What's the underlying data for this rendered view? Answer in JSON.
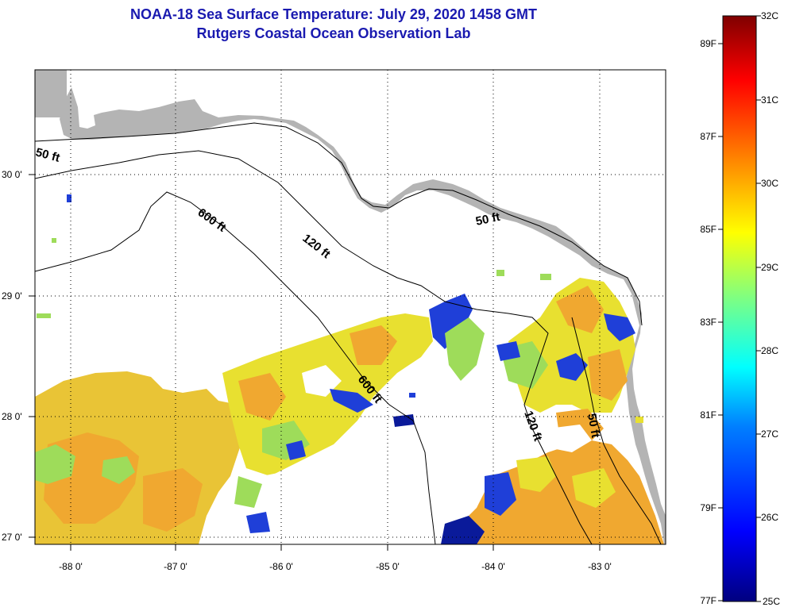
{
  "title": {
    "line1": "NOAA-18 Sea Surface Temperature:  July 29, 2020 1458 GMT",
    "line2": "Rutgers Coastal Ocean Observation Lab"
  },
  "axes": {
    "lon_labels": [
      "-88 0'",
      "-87 0'",
      "-86 0'",
      "-85 0'",
      "-84 0'",
      "-83 0'"
    ],
    "lat_labels": [
      "30 0'",
      "29 0'",
      "28 0'",
      "27 0'"
    ]
  },
  "contours": {
    "c50_west": "50 ft",
    "c600_north": "600 ft",
    "c120_north": "120 ft",
    "c50_east": "50 ft",
    "c600_south": "600 ft",
    "c120_south": "120 ft",
    "c50_south": "50 ft"
  },
  "colorbar": {
    "celsius": [
      "32C",
      "31C",
      "30C",
      "29C",
      "28C",
      "27C",
      "26C",
      "25C"
    ],
    "fahrenheit": [
      "89F",
      "87F",
      "85F",
      "83F",
      "81F",
      "79F",
      "77F"
    ],
    "colors": [
      "#00007f",
      "#0000ff",
      "#0080ff",
      "#00ffff",
      "#80ff80",
      "#ffff00",
      "#ff8000",
      "#ff0000",
      "#7f0000"
    ]
  },
  "palette": {
    "land": "#b4b4b4",
    "cloud": "#ffffff",
    "warm_orange": "#f0a830",
    "yellow": "#e8e030",
    "green": "#9edc5a",
    "blue": "#1f3fd8",
    "dark_blue": "#0a1a9a"
  }
}
